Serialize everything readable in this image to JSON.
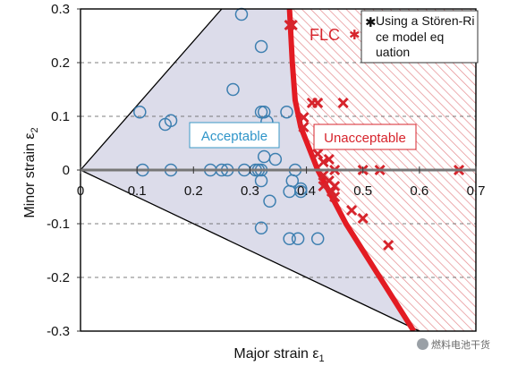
{
  "chart_data": {
    "type": "scatter",
    "xlabel": "Major strain ε₁",
    "ylabel": "Minor strain ε₂",
    "xlim": [
      0,
      0.7
    ],
    "ylim": [
      -0.3,
      0.3
    ],
    "x_ticks": [
      "0",
      "0.1",
      "0.2",
      "0.3",
      "0.4",
      "0.5",
      "0.6",
      "0.7"
    ],
    "y_ticks": [
      "0.3",
      "0.2",
      "0.1",
      "0",
      "-0.1",
      "-0.2",
      "-0.3"
    ],
    "grid": "dashed horizontal at 0.2, 0.1, -0.1, -0.2",
    "legend": {
      "position": "top-right",
      "label": "Using a Stören-Rice model equation",
      "marker": "✱"
    },
    "flc_label": "FLC",
    "flc_marker": "✱",
    "acceptable_label": "Acceptable",
    "unacceptable_label": "Unacceptable",
    "boundary_lines": [
      {
        "name": "upper",
        "points": [
          [
            0,
            0
          ],
          [
            0.25,
            0.3
          ]
        ]
      },
      {
        "name": "lower",
        "points": [
          [
            0,
            0
          ],
          [
            0.6,
            -0.3
          ]
        ]
      }
    ],
    "flc_curve": [
      [
        0.37,
        0.3
      ],
      [
        0.375,
        0.2
      ],
      [
        0.38,
        0.13
      ],
      [
        0.39,
        0.08
      ],
      [
        0.405,
        0.04
      ],
      [
        0.42,
        0.0
      ],
      [
        0.445,
        -0.05
      ],
      [
        0.47,
        -0.1
      ],
      [
        0.5,
        -0.15
      ],
      [
        0.53,
        -0.2
      ],
      [
        0.56,
        -0.25
      ],
      [
        0.59,
        -0.3
      ]
    ],
    "series": [
      {
        "name": "Acceptable",
        "marker": "circle",
        "color": "#3d7fb0",
        "x": [
          0.285,
          0.32,
          0.105,
          0.16,
          0.15,
          0.27,
          0.32,
          0.325,
          0.365,
          0.33,
          0.11,
          0.16,
          0.23,
          0.25,
          0.26,
          0.29,
          0.31,
          0.315,
          0.32,
          0.325,
          0.345,
          0.38,
          0.37,
          0.32,
          0.335,
          0.39,
          0.375,
          0.39,
          0.32,
          0.37,
          0.385,
          0.42
        ],
        "y": [
          0.29,
          0.23,
          0.108,
          0.092,
          0.085,
          0.15,
          0.108,
          0.108,
          0.108,
          0.09,
          0.0,
          0.0,
          0.0,
          0.0,
          0.0,
          0.0,
          0.0,
          0.0,
          0.0,
          0.025,
          0.02,
          0.0,
          -0.04,
          -0.02,
          -0.058,
          -0.035,
          -0.02,
          -0.04,
          -0.108,
          -0.128,
          -0.128,
          -0.128
        ]
      },
      {
        "name": "Unacceptable",
        "marker": "x",
        "color": "#d7242c",
        "x": [
          0.37,
          0.375,
          0.41,
          0.42,
          0.465,
          0.395,
          0.395,
          0.44,
          0.42,
          0.43,
          0.44,
          0.45,
          0.43,
          0.44,
          0.45,
          0.43,
          0.445,
          0.5,
          0.53,
          0.67,
          0.45,
          0.48,
          0.5,
          0.545
        ],
        "y": [
          0.27,
          0.27,
          0.125,
          0.125,
          0.125,
          0.098,
          0.08,
          0.06,
          0.03,
          0.015,
          0.02,
          0.0,
          -0.01,
          -0.02,
          -0.03,
          -0.03,
          -0.04,
          0.0,
          0.0,
          0.0,
          -0.05,
          -0.075,
          -0.09,
          -0.14
        ]
      }
    ]
  },
  "watermark": "燃料电池干货"
}
